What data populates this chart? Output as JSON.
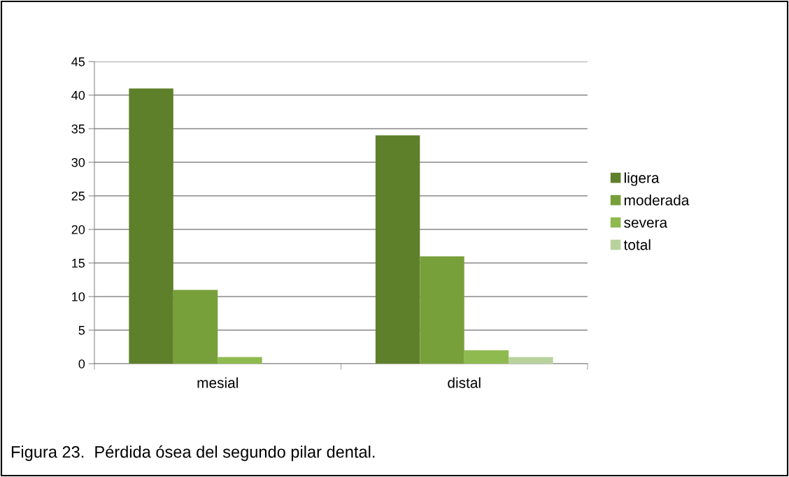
{
  "chart_data": {
    "type": "bar",
    "categories": [
      "mesial",
      "distal"
    ],
    "series": [
      {
        "name": "ligera",
        "color": "#5f802b",
        "values": [
          41,
          34
        ]
      },
      {
        "name": "moderada",
        "color": "#77a03a",
        "values": [
          11,
          16
        ]
      },
      {
        "name": "severa",
        "color": "#8fba50",
        "values": [
          1,
          2
        ]
      },
      {
        "name": "total",
        "color": "#b8d29e",
        "values": [
          0,
          1
        ]
      }
    ],
    "ylim": [
      0,
      45
    ],
    "yticks": [
      0,
      5,
      10,
      15,
      20,
      25,
      30,
      35,
      40,
      45
    ],
    "grid": "y",
    "legend": "right",
    "annotations": [
      "Figura 23.  Pérdida ósea del segundo pilar dental."
    ]
  }
}
